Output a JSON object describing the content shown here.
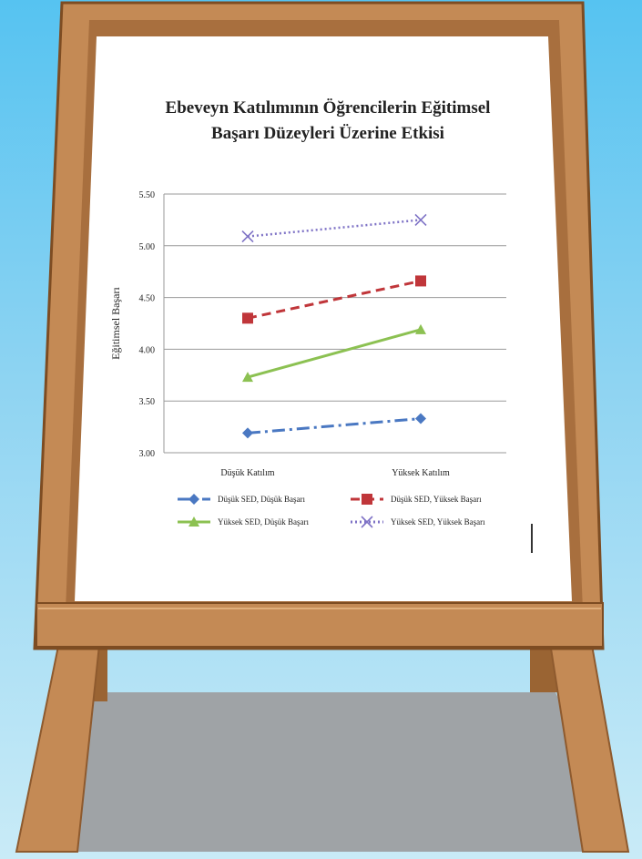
{
  "colors": {
    "sky_top": "#56c3f1",
    "sky_bottom": "#c9ebf7",
    "wood": "#c48a55",
    "wood_dark": "#8e5a2e",
    "board": "#ffffff",
    "shadow": "#9fa3a6"
  },
  "chart_data": {
    "type": "line",
    "title_line1": "Ebeveyn Katılımının Öğrencilerin Eğitimsel",
    "title_line2": "Başarı Düzeyleri Üzerine Etkisi",
    "ylabel": "Eğitimsel Başarı",
    "xlabel": "",
    "categories": [
      "Düşük Katılım",
      "Yüksek Katılım"
    ],
    "ylim": [
      3.0,
      5.5
    ],
    "yticks": [
      "3.00",
      "3.50",
      "4.00",
      "4.50",
      "5.00",
      "5.50"
    ],
    "grid": true,
    "legend_position": "bottom",
    "series": [
      {
        "name": "Düşük SED, Düşük Başarı",
        "values": [
          3.19,
          3.33
        ],
        "color": "#4a78c2",
        "dash": "14 5 3 5",
        "marker": "diamond"
      },
      {
        "name": "Düşük SED, Yüksek Başarı",
        "values": [
          4.3,
          4.66
        ],
        "color": "#c0363a",
        "dash": "10 6",
        "marker": "square"
      },
      {
        "name": "Yüksek SED, Düşük Başarı",
        "values": [
          3.73,
          4.19
        ],
        "color": "#8cc152",
        "dash": "",
        "marker": "triangle"
      },
      {
        "name": "Yüksek SED, Yüksek Başarı",
        "values": [
          5.09,
          5.25
        ],
        "color": "#7f73c6",
        "dash": "2 3",
        "marker": "x"
      }
    ]
  }
}
